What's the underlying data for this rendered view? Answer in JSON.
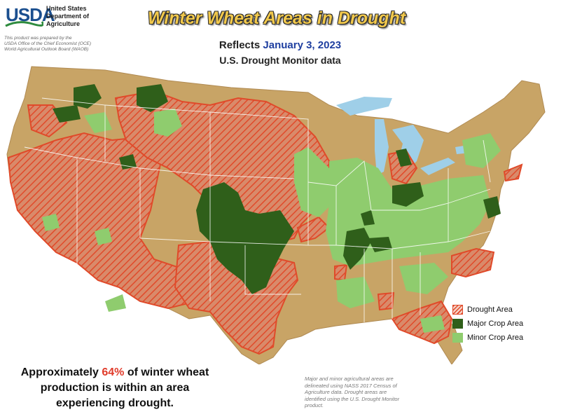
{
  "header": {
    "logo_text": "USDA",
    "department": [
      "United States",
      "Department of",
      "Agriculture"
    ],
    "credit": [
      "This product was prepared by the",
      "USDA Office of the Chief Economist (OCE)",
      "World Agricultural Outlook Board (WAOB)"
    ],
    "title": "Winter Wheat Areas in Drought",
    "reflects_label": "Reflects",
    "date": "January 3, 2023",
    "source_line": "U.S. Drought Monitor data"
  },
  "legend": {
    "items": [
      {
        "label": "Drought Area",
        "icon": "hatched-red-swatch",
        "color": "#e04a2a"
      },
      {
        "label": "Major Crop Area",
        "icon": "dark-green-swatch",
        "color": "#2f5f1a"
      },
      {
        "label": "Minor Crop Area",
        "icon": "light-green-swatch",
        "color": "#8fcc6e"
      }
    ]
  },
  "callout": {
    "line1_prefix": "Approximately",
    "percent": "64%",
    "line1_suffix": "of winter wheat",
    "line2": "production is within an area",
    "line3": "experiencing drought."
  },
  "note": [
    "Major and minor agricultural areas are",
    "delineated using NASS 2017 Census of",
    "Agriculture data.  Drought areas are",
    "identified using the U.S. Drought Monitor",
    "product."
  ],
  "colors": {
    "land": "#c8a466",
    "water": "#9fcfe8",
    "drought": "#e04a2a",
    "major_crop": "#2f5f1a",
    "minor_crop": "#8fcc6e",
    "state_border": "#ffffff"
  }
}
